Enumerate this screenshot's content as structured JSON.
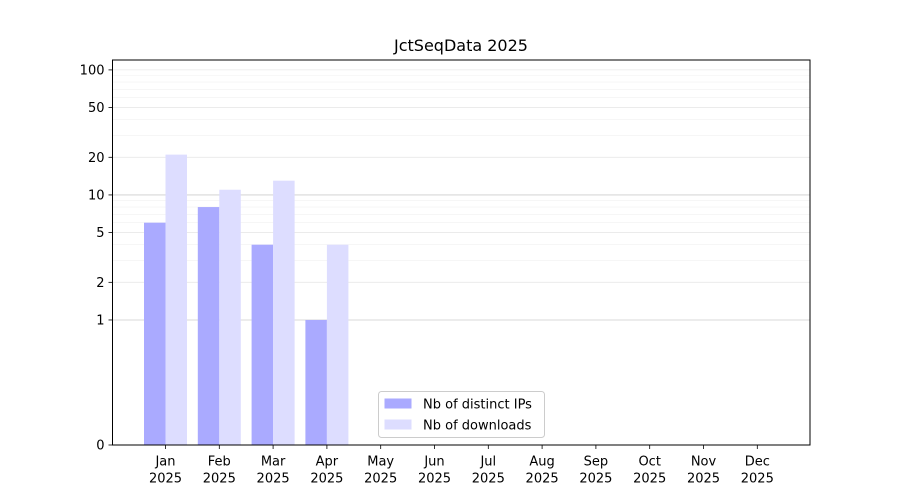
{
  "chart_data": {
    "type": "bar",
    "title": "JctSeqData 2025",
    "xlabel": "",
    "ylabel": "",
    "y_scale": "symlog",
    "ylim": [
      0,
      120
    ],
    "y_ticks": [
      0,
      1,
      2,
      5,
      10,
      20,
      50,
      100
    ],
    "categories": [
      [
        "Jan",
        "2025"
      ],
      [
        "Feb",
        "2025"
      ],
      [
        "Mar",
        "2025"
      ],
      [
        "Apr",
        "2025"
      ],
      [
        "May",
        "2025"
      ],
      [
        "Jun",
        "2025"
      ],
      [
        "Jul",
        "2025"
      ],
      [
        "Aug",
        "2025"
      ],
      [
        "Sep",
        "2025"
      ],
      [
        "Oct",
        "2025"
      ],
      [
        "Nov",
        "2025"
      ],
      [
        "Dec",
        "2025"
      ]
    ],
    "series": [
      {
        "name": "Nb of distinct IPs",
        "color": "#aaaaff",
        "values": [
          6,
          8,
          4,
          1,
          0,
          0,
          0,
          0,
          0,
          0,
          0,
          0
        ]
      },
      {
        "name": "Nb of downloads",
        "color": "#ddddff",
        "values": [
          21,
          11,
          13,
          4,
          0,
          0,
          0,
          0,
          0,
          0,
          0,
          0
        ]
      }
    ],
    "grid": true,
    "legend_position": "lower center"
  }
}
